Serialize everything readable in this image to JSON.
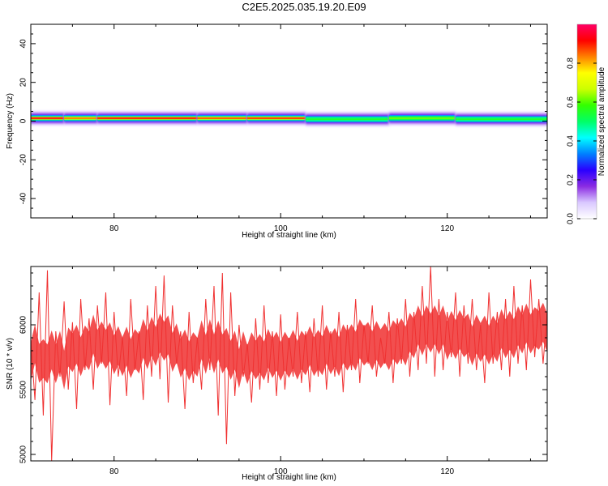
{
  "page": {
    "title": "C2E5.2025.035.19.20.E09"
  },
  "chart_data": [
    {
      "type": "heatmap",
      "xlabel": "Height of straight line (km)",
      "ylabel": "Frequency (Hz)",
      "xlim": [
        70,
        132
      ],
      "ylim": [
        -50,
        50
      ],
      "x_ticks": [
        80,
        100,
        120
      ],
      "x_tick_labels": [
        "80",
        "100",
        "120"
      ],
      "y_ticks": [
        -40,
        -20,
        0,
        20,
        40
      ],
      "y_tick_labels": [
        "-40",
        "-20",
        "0",
        "20",
        "40"
      ],
      "grid": false,
      "colorbar": {
        "label": "Normalized spectral amplitude",
        "range": [
          0,
          1
        ],
        "ticks": [
          0.0,
          0.2,
          0.4,
          0.6,
          0.8
        ],
        "tick_labels": [
          "0.0",
          "0.2",
          "0.4",
          "0.6",
          "0.8"
        ],
        "colors": [
          "#ffffff",
          "#d9c8ff",
          "#8a2be2",
          "#2a00ff",
          "#0080ff",
          "#00ffff",
          "#00ff66",
          "#33ff00",
          "#ccff00",
          "#ffff00",
          "#ff8000",
          "#ff0000",
          "#ff0066"
        ]
      },
      "band_segments": [
        {
          "x": [
            70,
            74
          ],
          "center_hz": 1.5,
          "amplitude": 0.93
        },
        {
          "x": [
            74,
            78
          ],
          "center_hz": 1.5,
          "amplitude": 0.85
        },
        {
          "x": [
            78,
            90
          ],
          "center_hz": 1.5,
          "amplitude": 0.92
        },
        {
          "x": [
            90,
            96
          ],
          "center_hz": 1.5,
          "amplitude": 0.88
        },
        {
          "x": [
            96,
            103
          ],
          "center_hz": 1.5,
          "amplitude": 0.9
        },
        {
          "x": [
            103,
            113
          ],
          "center_hz": 1.0,
          "amplitude": 0.55
        },
        {
          "x": [
            113,
            121
          ],
          "center_hz": 1.5,
          "amplitude": 0.62
        },
        {
          "x": [
            121,
            132
          ],
          "center_hz": 1.0,
          "amplitude": 0.55
        }
      ]
    },
    {
      "type": "line",
      "xlabel": "Height of straight line (km)",
      "ylabel": "SNR (10 * v/v)",
      "xlim": [
        70,
        132
      ],
      "ylim": [
        4950,
        6450
      ],
      "x_ticks": [
        80,
        100,
        120
      ],
      "x_tick_labels": [
        "80",
        "100",
        "120"
      ],
      "y_ticks": [
        5000,
        5500,
        6000
      ],
      "y_tick_labels": [
        "5000",
        "5500",
        "6000"
      ],
      "grid": false,
      "series": [
        {
          "color": "#f03030",
          "x": [
            70.0,
            70.5,
            71.0,
            71.5,
            72.0,
            72.5,
            73.0,
            73.5,
            74.0,
            74.5,
            75.0,
            75.5,
            76.0,
            76.5,
            77.0,
            77.5,
            78.0,
            78.5,
            79.0,
            79.5,
            80.0,
            80.5,
            81.0,
            81.5,
            82.0,
            82.5,
            83.0,
            83.5,
            84.0,
            84.5,
            85.0,
            85.5,
            86.0,
            86.5,
            87.0,
            87.5,
            88.0,
            88.5,
            89.0,
            89.5,
            90.0,
            90.5,
            91.0,
            91.5,
            92.0,
            92.5,
            93.0,
            93.5,
            94.0,
            94.5,
            95.0,
            95.5,
            96.0,
            96.5,
            97.0,
            97.5,
            98.0,
            98.5,
            99.0,
            99.5,
            100.0,
            100.5,
            101.0,
            101.5,
            102.0,
            102.5,
            103.0,
            103.5,
            104.0,
            104.5,
            105.0,
            105.5,
            106.0,
            106.5,
            107.0,
            107.5,
            108.0,
            108.5,
            109.0,
            109.5,
            110.0,
            110.5,
            111.0,
            111.5,
            112.0,
            112.5,
            113.0,
            113.5,
            114.0,
            114.5,
            115.0,
            115.5,
            116.0,
            116.5,
            117.0,
            117.5,
            118.0,
            118.5,
            119.0,
            119.5,
            120.0,
            120.5,
            121.0,
            121.5,
            122.0,
            122.5,
            123.0,
            123.5,
            124.0,
            124.5,
            125.0,
            125.5,
            126.0,
            126.5,
            127.0,
            127.5,
            128.0,
            128.5,
            129.0,
            129.5,
            130.0,
            130.5,
            131.0,
            131.5,
            132.0
          ],
          "values": [
            5880,
            5420,
            6250,
            5300,
            6420,
            4950,
            5950,
            5600,
            6180,
            5500,
            6020,
            5350,
            6200,
            5650,
            6050,
            5500,
            6150,
            5700,
            6250,
            5380,
            6100,
            5600,
            5900,
            5450,
            6200,
            5650,
            5950,
            5420,
            6150,
            5600,
            6300,
            5580,
            6380,
            5400,
            6150,
            5700,
            5950,
            5350,
            6100,
            5550,
            5900,
            5500,
            6200,
            5650,
            6300,
            5300,
            6400,
            5080,
            6250,
            5450,
            6000,
            5600,
            5850,
            5400,
            6050,
            5500,
            6150,
            5550,
            5950,
            5450,
            6080,
            5500,
            5900,
            5600,
            6100,
            5550,
            5950,
            5480,
            6050,
            5600,
            6150,
            5500,
            5950,
            5600,
            6100,
            5480,
            6000,
            5650,
            6200,
            5550,
            6000,
            5700,
            6150,
            5600,
            5900,
            5700,
            6100,
            5550,
            6050,
            5700,
            6200,
            5600,
            6100,
            5650,
            6300,
            5700,
            6450,
            5600,
            6200,
            5650,
            6100,
            5750,
            6250,
            5600,
            6150,
            5700,
            6200,
            5650,
            6000,
            5550,
            6250,
            5700,
            6100,
            5650,
            6200,
            5600,
            6300,
            5700,
            6150,
            5650,
            6350,
            5750,
            6200,
            5700,
            6100
          ]
        }
      ]
    }
  ]
}
